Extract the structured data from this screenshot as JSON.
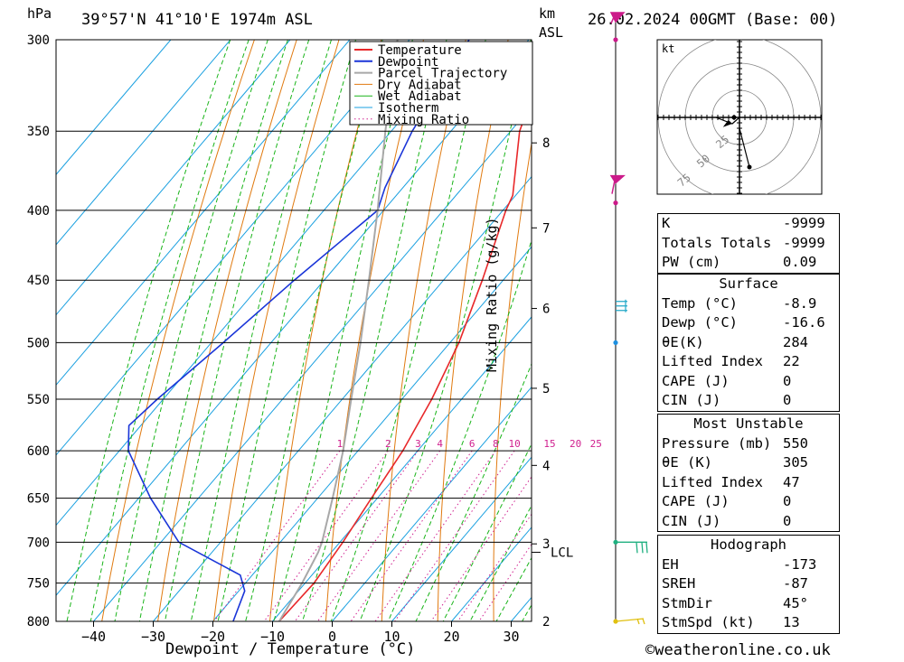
{
  "header": {
    "pressure_unit": "hPa",
    "location": "39°57'N  41°10'E  1974m  ASL",
    "height_unit": "km",
    "height_unit2": "ASL",
    "datetime": "26.02.2024  00GMT  (Base: 00)"
  },
  "chart_data": {
    "type": "line",
    "subtype": "skew-T log-P",
    "xlabel": "Dewpoint / Temperature (°C)",
    "ylabel": "hPa",
    "y2label": "km ASL",
    "mixing_ratio_label": "Mixing Ratio (g/kg)",
    "pressure_levels": [
      300,
      350,
      400,
      450,
      500,
      550,
      600,
      650,
      700,
      750,
      800
    ],
    "pressure_labels": [
      "300",
      "350",
      "400",
      "450",
      "500",
      "550",
      "600",
      "650",
      "700",
      "750",
      "800"
    ],
    "temperature_ticks": [
      -40,
      -30,
      -20,
      -10,
      0,
      10,
      20,
      30
    ],
    "temperature_labels": [
      "−40",
      "−30",
      "−20",
      "−10",
      "0",
      "10",
      "20",
      "30"
    ],
    "km_ticks": [
      {
        "label": "8",
        "p": 357
      },
      {
        "label": "7",
        "p": 412
      },
      {
        "label": "6",
        "p": 472
      },
      {
        "label": "5",
        "p": 540
      },
      {
        "label": "4",
        "p": 615
      },
      {
        "label": "3",
        "p": 702
      }
    ],
    "km_bottom_label": "2",
    "lcl_label": "LCL",
    "lcl_pressure": 712,
    "mixing_ratio_values": [
      1,
      2,
      3,
      4,
      6,
      8,
      10,
      15,
      20,
      25
    ],
    "mixing_ratio_labels": [
      "1",
      "2",
      "3",
      "4",
      "6",
      "8",
      "10",
      "15",
      "20",
      "25"
    ],
    "legend": [
      "Temperature",
      "Dewpoint",
      "Parcel Trajectory",
      "Dry Adiabat",
      "Wet Adiabat",
      "Isotherm",
      "Mixing Ratio"
    ],
    "series": [
      {
        "name": "Temperature",
        "color": "#e8282a",
        "points": [
          [
            300,
            -46
          ],
          [
            350,
            -38.5
          ],
          [
            390,
            -30.5
          ],
          [
            400,
            -29.5
          ],
          [
            450,
            -23.5
          ],
          [
            500,
            -18.5
          ],
          [
            550,
            -15
          ],
          [
            600,
            -12.5
          ],
          [
            650,
            -11
          ],
          [
            700,
            -9.5
          ],
          [
            750,
            -8.5
          ],
          [
            800,
            -8.9
          ]
        ]
      },
      {
        "name": "Dewpoint",
        "color": "#1a35d8",
        "points": [
          [
            300,
            -60
          ],
          [
            350,
            -56.5
          ],
          [
            385,
            -53
          ],
          [
            400,
            -51
          ],
          [
            450,
            -55
          ],
          [
            500,
            -58
          ],
          [
            550,
            -61
          ],
          [
            575,
            -62
          ],
          [
            600,
            -58.5
          ],
          [
            650,
            -48
          ],
          [
            700,
            -37
          ],
          [
            740,
            -22
          ],
          [
            760,
            -19
          ],
          [
            800,
            -16.6
          ]
        ]
      },
      {
        "name": "Parcel Trajectory",
        "color": "#a8a8a8",
        "points": [
          [
            300,
            -72
          ],
          [
            350,
            -61
          ],
          [
            400,
            -51
          ],
          [
            450,
            -42.5
          ],
          [
            500,
            -35
          ],
          [
            550,
            -28.5
          ],
          [
            600,
            -22.5
          ],
          [
            650,
            -17.5
          ],
          [
            700,
            -13
          ],
          [
            712,
            -12.2
          ],
          [
            750,
            -10.5
          ],
          [
            800,
            -8.9
          ]
        ]
      }
    ],
    "colors": {
      "temperature": "#e8282a",
      "dewpoint": "#1a35d8",
      "parcel": "#a8a8a8",
      "dry_adiabat": "#e07a10",
      "wet_adiabat": "#19b419",
      "isotherm": "#1aa0e0",
      "mixing_ratio": "#d0208f"
    }
  },
  "wind_profile": [
    {
      "p": 300,
      "color": "#cc1a8a",
      "symbol": "dot-barb"
    },
    {
      "p": 395,
      "color": "#cc1a8a",
      "symbol": "dot-barb"
    },
    {
      "p": 470,
      "color": "#20a8c8",
      "symbol": "barb"
    },
    {
      "p": 500,
      "color": "#1e90e0",
      "symbol": "dot"
    },
    {
      "p": 700,
      "color": "#20b080",
      "symbol": "dot-barb"
    },
    {
      "p": 800,
      "color": "#e0c010",
      "symbol": "dot-barb"
    }
  ],
  "hodograph": {
    "unit_label": "kt",
    "ring_labels": [
      "25",
      "50",
      "75"
    ],
    "storm_motion": {
      "dir_deg": 45,
      "speed_kt": 13
    }
  },
  "tables": {
    "indices": [
      {
        "label": "K",
        "value": "-9999"
      },
      {
        "label": "Totals Totals",
        "value": "-9999"
      },
      {
        "label": "PW (cm)",
        "value": "0.09"
      }
    ],
    "surface": {
      "title": "Surface",
      "rows": [
        {
          "label": "Temp (°C)",
          "value": "-8.9"
        },
        {
          "label": "Dewp (°C)",
          "value": "-16.6"
        },
        {
          "label": "θE(K)",
          "value": "284"
        },
        {
          "label": "Lifted Index",
          "value": "22"
        },
        {
          "label": "CAPE (J)",
          "value": "0"
        },
        {
          "label": "CIN (J)",
          "value": "0"
        }
      ]
    },
    "most_unstable": {
      "title": "Most Unstable",
      "rows": [
        {
          "label": "Pressure (mb)",
          "value": "550"
        },
        {
          "label": "θE (K)",
          "value": "305"
        },
        {
          "label": "Lifted Index",
          "value": "47"
        },
        {
          "label": "CAPE (J)",
          "value": "0"
        },
        {
          "label": "CIN (J)",
          "value": "0"
        }
      ]
    },
    "hodograph": {
      "title": "Hodograph",
      "rows": [
        {
          "label": "EH",
          "value": "-173"
        },
        {
          "label": "SREH",
          "value": "-87"
        },
        {
          "label": "StmDir",
          "value": "45°"
        },
        {
          "label": "StmSpd (kt)",
          "value": "13"
        }
      ]
    }
  },
  "footer": {
    "copyright": "©weatheronline.co.uk"
  }
}
